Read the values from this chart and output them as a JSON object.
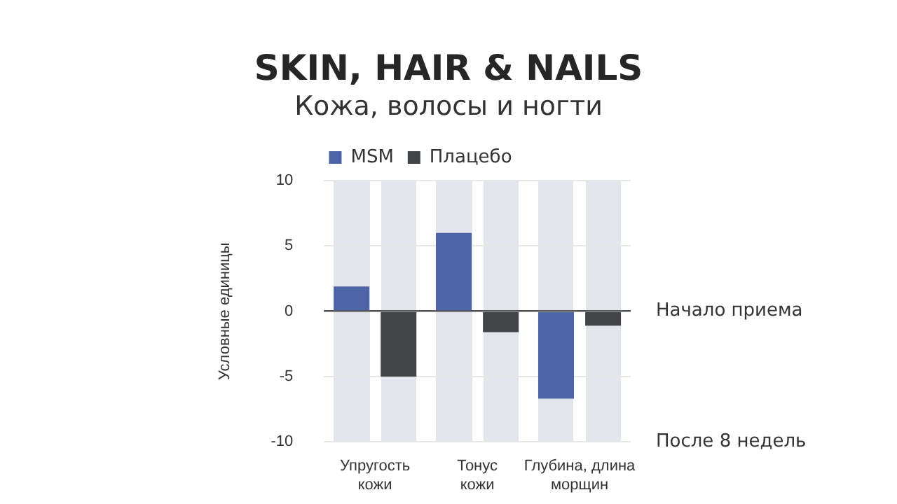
{
  "chart_data": {
    "type": "bar",
    "title": "SKIN, HAIR & NAILS",
    "subtitle": "Кожа, волосы и ногти",
    "ylabel": "Условные единицы",
    "categories": [
      "Упругость кожи",
      "Тонус кожи",
      "Глубина, длина морщин"
    ],
    "series": [
      {
        "name": "MSM",
        "color": "#4e64a8",
        "values": [
          1.9,
          6,
          -6.7
        ]
      },
      {
        "name": "Плацебо",
        "color": "#434447",
        "values": [
          -5,
          -1.6,
          -1.1
        ]
      }
    ],
    "ylim": [
      -10,
      10
    ],
    "yticks": [
      -10,
      -5,
      0,
      5,
      10
    ],
    "grid": "y",
    "legend": "top",
    "annotations": [
      "Начало приема",
      "После 8 недель"
    ]
  }
}
